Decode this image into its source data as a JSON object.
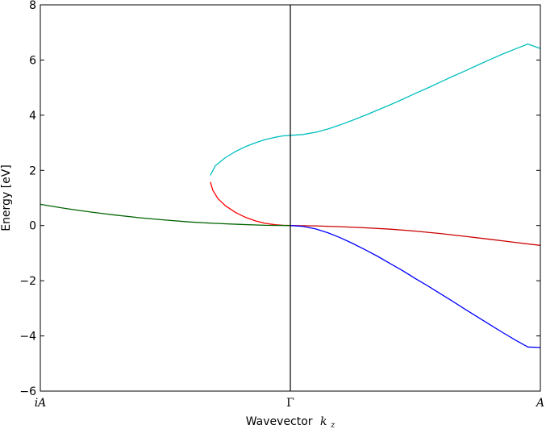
{
  "chart_data": {
    "type": "line",
    "title": "",
    "xlabel": "Wavevector",
    "xlabel_math": "k",
    "xlabel_math_sub": "z",
    "ylabel": "Energy [eV]",
    "xlim": [
      -1,
      1
    ],
    "ylim": [
      -6,
      8
    ],
    "grid": false,
    "xticks": [
      {
        "value": -1,
        "label": "iA",
        "italic": true
      },
      {
        "value": 0,
        "label": "Γ",
        "italic": false
      },
      {
        "value": 1,
        "label": "A",
        "italic": true
      }
    ],
    "yticks": [
      -6,
      -4,
      -2,
      0,
      2,
      4,
      6,
      8
    ],
    "vlines": [
      {
        "x": 0,
        "color": "#000000"
      }
    ],
    "series": [
      {
        "name": "cyan-band",
        "color": "#00bfbf",
        "points": [
          [
            -0.32,
            1.82
          ],
          [
            -0.3,
            2.17
          ],
          [
            -0.26,
            2.46
          ],
          [
            -0.22,
            2.68
          ],
          [
            -0.18,
            2.86
          ],
          [
            -0.14,
            3.0
          ],
          [
            -0.1,
            3.12
          ],
          [
            -0.06,
            3.2
          ],
          [
            -0.03,
            3.25
          ],
          [
            0.0,
            3.27
          ],
          [
            0.05,
            3.3
          ],
          [
            0.1,
            3.38
          ],
          [
            0.15,
            3.5
          ],
          [
            0.2,
            3.65
          ],
          [
            0.25,
            3.82
          ],
          [
            0.3,
            4.0
          ],
          [
            0.35,
            4.19
          ],
          [
            0.4,
            4.38
          ],
          [
            0.45,
            4.58
          ],
          [
            0.5,
            4.79
          ],
          [
            0.55,
            4.99
          ],
          [
            0.6,
            5.2
          ],
          [
            0.65,
            5.41
          ],
          [
            0.7,
            5.61
          ],
          [
            0.75,
            5.82
          ],
          [
            0.8,
            6.02
          ],
          [
            0.85,
            6.22
          ],
          [
            0.9,
            6.4
          ],
          [
            0.95,
            6.58
          ],
          [
            1.0,
            6.42
          ]
        ]
      },
      {
        "name": "red-band-left",
        "color": "#ff0000",
        "points": [
          [
            -0.32,
            1.58
          ],
          [
            -0.31,
            1.28
          ],
          [
            -0.29,
            0.98
          ],
          [
            -0.26,
            0.72
          ],
          [
            -0.22,
            0.48
          ],
          [
            -0.18,
            0.3
          ],
          [
            -0.14,
            0.17
          ],
          [
            -0.1,
            0.08
          ],
          [
            -0.06,
            0.03
          ],
          [
            -0.03,
            0.01
          ],
          [
            0.0,
            0.0
          ]
        ]
      },
      {
        "name": "red-band-right",
        "color": "#cc0000",
        "points": [
          [
            0.0,
            0.0
          ],
          [
            0.1,
            -0.01
          ],
          [
            0.2,
            -0.04
          ],
          [
            0.3,
            -0.08
          ],
          [
            0.4,
            -0.13
          ],
          [
            0.5,
            -0.2
          ],
          [
            0.6,
            -0.29
          ],
          [
            0.7,
            -0.39
          ],
          [
            0.8,
            -0.5
          ],
          [
            0.9,
            -0.61
          ],
          [
            1.0,
            -0.72
          ]
        ]
      },
      {
        "name": "green-band",
        "color": "#006400",
        "points": [
          [
            -1.0,
            0.77
          ],
          [
            -0.9,
            0.62
          ],
          [
            -0.8,
            0.49
          ],
          [
            -0.7,
            0.38
          ],
          [
            -0.6,
            0.28
          ],
          [
            -0.5,
            0.2
          ],
          [
            -0.4,
            0.13
          ],
          [
            -0.3,
            0.08
          ],
          [
            -0.2,
            0.04
          ],
          [
            -0.1,
            0.01
          ],
          [
            0.0,
            0.0
          ]
        ]
      },
      {
        "name": "blue-band",
        "color": "#0000ff",
        "points": [
          [
            0.0,
            0.0
          ],
          [
            0.05,
            -0.03
          ],
          [
            0.1,
            -0.12
          ],
          [
            0.15,
            -0.26
          ],
          [
            0.2,
            -0.44
          ],
          [
            0.25,
            -0.65
          ],
          [
            0.3,
            -0.88
          ],
          [
            0.35,
            -1.12
          ],
          [
            0.4,
            -1.38
          ],
          [
            0.45,
            -1.64
          ],
          [
            0.5,
            -1.92
          ],
          [
            0.55,
            -2.19
          ],
          [
            0.6,
            -2.47
          ],
          [
            0.65,
            -2.75
          ],
          [
            0.7,
            -3.04
          ],
          [
            0.75,
            -3.32
          ],
          [
            0.8,
            -3.6
          ],
          [
            0.85,
            -3.88
          ],
          [
            0.9,
            -4.15
          ],
          [
            0.95,
            -4.4
          ],
          [
            1.0,
            -4.42
          ]
        ]
      }
    ]
  }
}
